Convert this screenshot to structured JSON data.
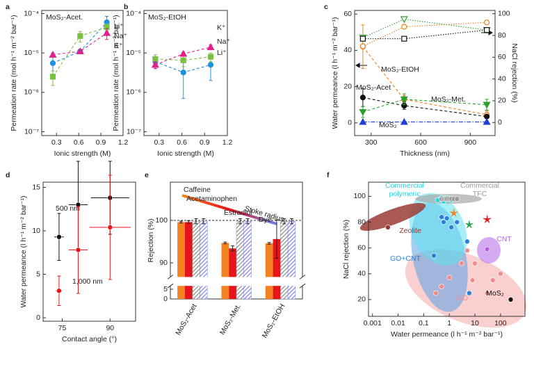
{
  "chart_data": [
    {
      "label": "a",
      "type": "line",
      "title": "MoS₂-Acet.",
      "xlabel": "Ionic strength (M)",
      "ylabel": "Permeation rate (mol h⁻¹ m⁻² bar⁻¹)",
      "x": [
        0.25,
        0.62,
        0.98
      ],
      "xlim": [
        0.1,
        1.2
      ],
      "xticks": [
        0.3,
        0.6,
        0.9,
        1.2
      ],
      "ylog": true,
      "ylim": [
        8e-08,
        0.00012
      ],
      "yticks": [
        {
          "value": 1e-07,
          "label": "10⁻⁷"
        },
        {
          "value": 1e-06,
          "label": "10⁻⁶"
        },
        {
          "value": 1e-05,
          "label": "10⁻⁵"
        },
        {
          "value": 0.0001,
          "label": "10⁻⁴"
        }
      ],
      "series": [
        {
          "name": "Li⁺",
          "color": "#1e90e0",
          "marker": "circle",
          "filled": true,
          "dash": "dashed",
          "values": [
            5.5e-06,
            1.1e-05,
            6e-05
          ],
          "errors": [
            3e-06,
            1e-06,
            2.5e-05
          ]
        },
        {
          "name": "Na⁺",
          "color": "#7ac143",
          "marker": "square",
          "filled": true,
          "dash": "dashed",
          "values": [
            2.5e-06,
            2.7e-05,
            4.5e-05
          ],
          "errors": [
            1e-06,
            8e-06,
            1e-05
          ]
        },
        {
          "name": "K⁺",
          "color": "#e0218a",
          "marker": "triangle",
          "filled": true,
          "dash": "dashed",
          "values": [
            9e-06,
            1.1e-05,
            3.2e-05
          ],
          "errors": [
            1e-06,
            1e-06,
            1e-05
          ]
        }
      ]
    },
    {
      "label": "b",
      "type": "line",
      "title": "MoS₂-EtOH",
      "xlabel": "Ionic strength (M)",
      "ylabel": "Permeation rate (mol h⁻¹ m⁻² bar⁻¹)",
      "x": [
        0.25,
        0.62,
        0.98
      ],
      "xlim": [
        0.1,
        1.2
      ],
      "xticks": [
        0.3,
        0.6,
        0.9,
        1.2
      ],
      "ylog": true,
      "ylim": [
        8e-08,
        0.00012
      ],
      "yticks": [
        {
          "value": 1e-07,
          "label": "10⁻⁷"
        },
        {
          "value": 1e-06,
          "label": "10⁻⁶"
        },
        {
          "value": 1e-05,
          "label": "10⁻⁵"
        },
        {
          "value": 0.0001,
          "label": "10⁻⁴"
        }
      ],
      "series": [
        {
          "name": "Li⁺",
          "color": "#1e90e0",
          "marker": "circle",
          "filled": true,
          "dash": "dashed",
          "values": [
            6e-06,
            3.2e-06,
            5e-06
          ],
          "errors": [
            2e-06,
            2.5e-06,
            3e-06
          ]
        },
        {
          "name": "Na⁺",
          "color": "#7ac143",
          "marker": "square",
          "filled": true,
          "dash": "dashed",
          "values": [
            7e-06,
            6.5e-06,
            8e-06
          ],
          "errors": [
            2e-06,
            2e-06,
            2e-06
          ]
        },
        {
          "name": "K⁺",
          "color": "#e0218a",
          "marker": "triangle",
          "filled": true,
          "dash": "dashed",
          "values": [
            5e-06,
            9.5e-06,
            1.4e-05
          ],
          "errors": [
            1e-06,
            1e-06,
            2e-06
          ]
        }
      ]
    },
    {
      "label": "c",
      "type": "line",
      "xlabel": "Thickness (nm)",
      "ylabel": "Water permeance (l h⁻¹ m⁻² bar⁻¹)",
      "y2label": "NaCl rejection (%)",
      "x": [
        250,
        500,
        1000
      ],
      "xlim": [
        200,
        1050
      ],
      "xticks": [
        300,
        600,
        900
      ],
      "ylim": [
        -7,
        62
      ],
      "yticks": [
        0,
        20,
        40,
        60
      ],
      "y2lim": [
        -12,
        103
      ],
      "y2ticks": [
        0,
        20,
        40,
        60,
        80,
        100
      ],
      "series": [
        {
          "name": "MoS₂-EtOH",
          "color": "#f07d1a",
          "marker": "circle",
          "filled": false,
          "dash": "dashed",
          "values": [
            42,
            13,
            4.5
          ],
          "errors": [
            12,
            2,
            2
          ]
        },
        {
          "name": "MoS₂-Acet",
          "color": "#111111",
          "marker": "circle",
          "filled": true,
          "dash": "dashed",
          "values": [
            14,
            9.5,
            3.5
          ],
          "errors": [
            5,
            2,
            1
          ]
        },
        {
          "name": "MoS₂-Met.",
          "color": "#2ca02c",
          "marker": "triangle-down",
          "filled": true,
          "dash": "dashed",
          "values": [
            6,
            13,
            10
          ],
          "errors": [
            3,
            3,
            3
          ]
        },
        {
          "name": "MoS₂",
          "color": "#1f3fd6",
          "marker": "triangle",
          "filled": true,
          "dash": "dashdot",
          "values": [
            0.5,
            0.5,
            0.5
          ]
        },
        {
          "axis": "y2",
          "color": "#f07d1a",
          "marker": "circle",
          "filled": false,
          "dash": "dotted",
          "values": [
            70,
            88,
            92
          ]
        },
        {
          "axis": "y2",
          "color": "#2ca02c",
          "marker": "triangle-down",
          "filled": false,
          "dash": "dotted",
          "values": [
            78,
            95,
            85
          ]
        },
        {
          "axis": "y2",
          "color": "#111111",
          "marker": "square",
          "filled": false,
          "dash": "dotted",
          "values": [
            77,
            77,
            85
          ]
        }
      ]
    },
    {
      "label": "d",
      "type": "scatter",
      "xlabel": "Contact angle (°)",
      "ylabel": "Water permeance (l h⁻¹ m⁻² bar⁻¹)",
      "xlim": [
        69,
        98
      ],
      "xticks": [
        75,
        90
      ],
      "ylim": [
        -0.4,
        15.6
      ],
      "yticks": [
        0,
        5,
        10,
        15
      ],
      "series": [
        {
          "name": "500 nm",
          "color": "#111111",
          "marker": "circle",
          "x": [
            74,
            80,
            90
          ],
          "values": [
            9.3,
            13,
            13.8
          ],
          "xerr": [
            1.5,
            3,
            6
          ],
          "errors": [
            2.7,
            5,
            4.2
          ]
        },
        {
          "name": "1,000 nm",
          "color": "#e8141c",
          "marker": "circle",
          "x": [
            74,
            80,
            90
          ],
          "values": [
            3.1,
            7.8,
            10.4
          ],
          "xerr": [
            1,
            3,
            6.5
          ],
          "errors": [
            1.7,
            5,
            6
          ]
        }
      ]
    },
    {
      "label": "e",
      "type": "bar",
      "ylabel": "Rejection (%)",
      "annotation": "Stoke radius",
      "categories": [
        "MoS₂-Acet",
        "MoS₂-Met.",
        "MoS₂-EtOH"
      ],
      "ylim": [
        0,
        109
      ],
      "ybreak": [
        6,
        87
      ],
      "yticks": [
        0,
        5,
        90,
        100
      ],
      "hline": 100,
      "series": [
        {
          "name": "Caffeine",
          "color": "#f58220",
          "values": [
            99.6,
            94.7,
            94.6
          ],
          "errors": [
            0.2,
            0.2,
            0.2
          ]
        },
        {
          "name": "Acetaminophen",
          "color": "#e8141c",
          "values": [
            99.6,
            93.4,
            95.6
          ],
          "errors": [
            0.3,
            0.6,
            4.5
          ]
        },
        {
          "name": "Estradiol",
          "color": "#8a8a8a",
          "hatch": true,
          "values": [
            99.8,
            99.8,
            99.8
          ],
          "errors": [
            0.6,
            0.6,
            0.6
          ]
        },
        {
          "name": "Dye",
          "color": "#7f80e6",
          "hatch": true,
          "values": [
            99.8,
            99.8,
            99.8
          ],
          "errors": [
            0.6,
            0.6,
            0.6
          ]
        }
      ]
    },
    {
      "label": "f",
      "type": "scatter",
      "xlabel": "Water permeance (l h⁻¹ m⁻² bar⁻¹)",
      "ylabel": "NaCl rejection (%)",
      "xlog": true,
      "xlim": [
        0.0007,
        900
      ],
      "xticks": [
        0.001,
        0.01,
        0.1,
        1,
        10,
        100
      ],
      "ylim": [
        7,
        111
      ],
      "yticks": [
        20,
        40,
        60,
        80,
        100
      ],
      "series": [
        {
          "name": "Commercial polymeric",
          "color": "#2ad4e0",
          "marker": "circle",
          "x": [
            0.35,
            0.5,
            0.8,
            1.2,
            0.6,
            1.0
          ],
          "values": [
            97,
            99,
            99,
            97,
            96,
            98
          ]
        },
        {
          "name": "Commercial TFC",
          "color": "#9a9a9a",
          "marker": "circle",
          "x": [
            0.5,
            0.6,
            0.7,
            0.8,
            1.0,
            1.2,
            1.5,
            2
          ],
          "values": [
            98,
            98,
            98,
            98,
            98,
            98,
            98,
            98
          ]
        },
        {
          "name": "Zeolite",
          "color": "#a0352f",
          "marker": "circle",
          "x": [
            0.004
          ],
          "values": [
            76
          ]
        },
        {
          "name": "CNT",
          "color": "#b25fe0",
          "marker": "circle",
          "x": [
            30
          ],
          "values": [
            59
          ]
        },
        {
          "name": "GO+CNT",
          "color": "#2b7fd9",
          "marker": "circle",
          "x": [
            0.25,
            0.6,
            0.5,
            0.8,
            1.2,
            2,
            6,
            5
          ],
          "values": [
            54,
            80,
            84,
            83,
            76,
            80,
            25,
            65
          ]
        },
        {
          "name": "GO",
          "color": "#f08c8c",
          "marker": "circle",
          "x": [
            0.3,
            0.5,
            1,
            3,
            8,
            10,
            30,
            50,
            100,
            5
          ],
          "values": [
            25,
            30,
            37,
            48,
            35,
            48,
            25,
            35,
            40,
            58
          ]
        },
        {
          "name": "MoS₂",
          "color": "#111111",
          "marker": "circle",
          "x": [
            250
          ],
          "values": [
            20
          ]
        },
        {
          "color": "#f58220",
          "marker": "star",
          "x": [
            1.5
          ],
          "values": [
            87
          ]
        },
        {
          "color": "#1aa34a",
          "marker": "star",
          "x": [
            6
          ],
          "values": [
            78
          ]
        },
        {
          "color": "#e8141c",
          "marker": "star",
          "x": [
            30
          ],
          "values": [
            82
          ]
        }
      ]
    }
  ]
}
